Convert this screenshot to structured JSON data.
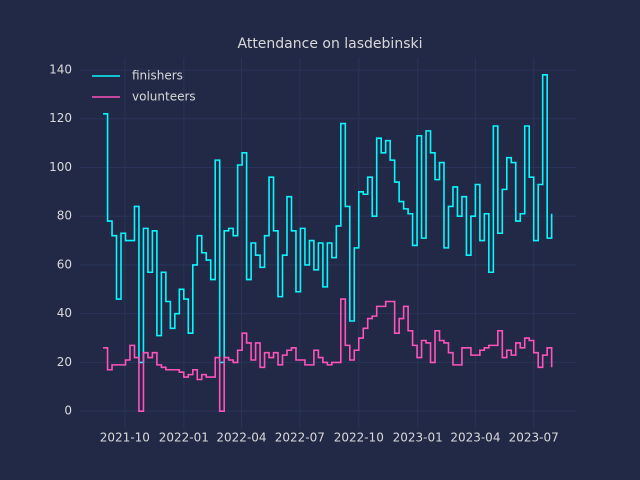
{
  "chart_data": {
    "type": "line",
    "title": "Attendance on lasdebinski",
    "x": [
      "2021-08-28",
      "2021-09-04",
      "2021-09-11",
      "2021-09-18",
      "2021-09-25",
      "2021-10-02",
      "2021-10-09",
      "2021-10-16",
      "2021-10-23",
      "2021-10-30",
      "2021-11-06",
      "2021-11-13",
      "2021-11-20",
      "2021-11-27",
      "2021-12-04",
      "2021-12-11",
      "2021-12-18",
      "2021-12-25",
      "2022-01-01",
      "2022-01-08",
      "2022-01-15",
      "2022-01-22",
      "2022-01-29",
      "2022-02-05",
      "2022-02-12",
      "2022-02-19",
      "2022-02-26",
      "2022-03-05",
      "2022-03-12",
      "2022-03-19",
      "2022-03-26",
      "2022-04-02",
      "2022-04-09",
      "2022-04-16",
      "2022-04-23",
      "2022-04-30",
      "2022-05-07",
      "2022-05-14",
      "2022-05-21",
      "2022-05-28",
      "2022-06-04",
      "2022-06-11",
      "2022-06-18",
      "2022-06-25",
      "2022-07-02",
      "2022-07-09",
      "2022-07-16",
      "2022-07-23",
      "2022-07-30",
      "2022-08-06",
      "2022-08-13",
      "2022-08-20",
      "2022-08-27",
      "2022-09-03",
      "2022-09-10",
      "2022-09-17",
      "2022-09-24",
      "2022-10-01",
      "2022-10-08",
      "2022-10-15",
      "2022-10-22",
      "2022-10-29",
      "2022-11-05",
      "2022-11-12",
      "2022-11-19",
      "2022-11-26",
      "2022-12-03",
      "2022-12-10",
      "2022-12-17",
      "2022-12-24",
      "2022-12-31",
      "2023-01-07",
      "2023-01-14",
      "2023-01-21",
      "2023-01-28",
      "2023-02-04",
      "2023-02-11",
      "2023-02-18",
      "2023-02-25",
      "2023-03-04",
      "2023-03-11",
      "2023-03-18",
      "2023-03-25",
      "2023-04-01",
      "2023-04-08",
      "2023-04-15",
      "2023-04-22",
      "2023-04-29",
      "2023-05-06",
      "2023-05-13",
      "2023-05-20",
      "2023-05-27",
      "2023-06-03",
      "2023-06-10",
      "2023-06-17",
      "2023-06-24",
      "2023-07-01",
      "2023-07-08",
      "2023-07-15",
      "2023-07-22",
      "2023-07-29"
    ],
    "series": [
      {
        "name": "finishers",
        "color": "#08F7FE",
        "values": [
          122,
          78,
          72,
          46,
          73,
          70,
          70,
          84,
          20,
          75,
          57,
          74,
          31,
          57,
          45,
          34,
          40,
          50,
          46,
          32,
          60,
          72,
          65,
          62,
          54,
          103,
          20,
          74,
          75,
          72,
          101,
          106,
          54,
          69,
          64,
          59,
          72,
          96,
          74,
          47,
          64,
          88,
          74,
          49,
          75,
          60,
          70,
          58,
          69,
          51,
          69,
          63,
          76,
          118,
          84,
          37,
          67,
          90,
          89,
          96,
          80,
          112,
          106,
          111,
          103,
          94,
          86,
          83,
          81,
          68,
          113,
          71,
          115,
          106,
          95,
          102,
          67,
          84,
          92,
          80,
          88,
          64,
          80,
          93,
          70,
          81,
          57,
          117,
          73,
          91,
          104,
          102,
          78,
          81,
          117,
          96,
          70,
          93,
          138,
          71,
          81
        ]
      },
      {
        "name": "volunteers",
        "color": "#FE53BB",
        "values": [
          26,
          17,
          19,
          19,
          19,
          21,
          27,
          22,
          0,
          24,
          22,
          24,
          19,
          18,
          17,
          17,
          17,
          16,
          14,
          15,
          17,
          13,
          15,
          14,
          14,
          22,
          0,
          22,
          21,
          20,
          25,
          32,
          28,
          21,
          28,
          18,
          24,
          22,
          24,
          19,
          23,
          25,
          26,
          21,
          21,
          19,
          19,
          25,
          22,
          20,
          19,
          20,
          20,
          46,
          27,
          21,
          25,
          30,
          34,
          38,
          39,
          43,
          43,
          45,
          45,
          32,
          38,
          43,
          33,
          27,
          22,
          29,
          28,
          20,
          33,
          29,
          28,
          24,
          19,
          19,
          26,
          26,
          23,
          23,
          25,
          26,
          27,
          27,
          33,
          22,
          25,
          23,
          28,
          26,
          30,
          29,
          24,
          18,
          23,
          26,
          18
        ]
      }
    ],
    "xlim": [
      "2021-07-23",
      "2023-09-05"
    ],
    "xticks": [
      {
        "value": "2021-10-01",
        "label": "2021-10"
      },
      {
        "value": "2022-01-01",
        "label": "2022-01"
      },
      {
        "value": "2022-04-01",
        "label": "2022-04"
      },
      {
        "value": "2022-07-01",
        "label": "2022-07"
      },
      {
        "value": "2022-10-01",
        "label": "2022-10"
      },
      {
        "value": "2023-01-01",
        "label": "2023-01"
      },
      {
        "value": "2023-04-01",
        "label": "2023-04"
      },
      {
        "value": "2023-07-01",
        "label": "2023-07"
      }
    ],
    "ylim": [
      -6.9,
      144.9
    ],
    "yticks": [
      0,
      20,
      40,
      60,
      80,
      100,
      120,
      140
    ],
    "grid": true,
    "step": "post",
    "legend": "upper left"
  }
}
